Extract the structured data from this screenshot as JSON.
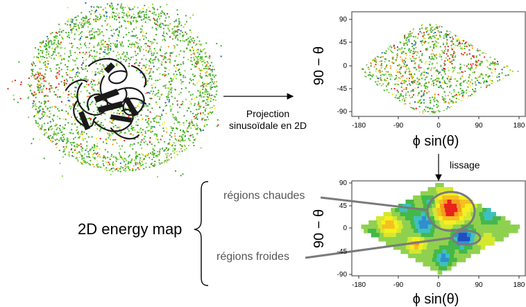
{
  "projection_caption": {
    "line1": "Projection",
    "line2": "sinusoïdale en 2D"
  },
  "lissage_label": "lissage",
  "energy_map_label": "2D energy map",
  "annotations": {
    "hot": "régions chaudes",
    "cold": "régions froides"
  },
  "top_plot": {
    "ylabel": "90 − θ",
    "xlabel": "ϕ sin(θ)",
    "yticks": [
      "90",
      "45",
      "0",
      "-45",
      "-90"
    ],
    "xticks": [
      "-180",
      "-90",
      "0",
      "90",
      "180"
    ]
  },
  "bottom_plot": {
    "ylabel": "90 − θ",
    "xlabel": "ϕ sin(θ)",
    "yticks": [
      "90",
      "45",
      "0",
      "-45",
      "-90"
    ],
    "xticks": [
      "-180",
      "-90",
      "0",
      "90",
      "180"
    ]
  },
  "colors": {
    "green": "#3fae2a",
    "light_green": "#8fd14f",
    "yellow": "#f5f020",
    "orange": "#f59a20",
    "red": "#e8231c",
    "blue": "#2255c8",
    "protein": "#1a1a1a",
    "annotation_gray": "#7a7a7a"
  }
}
